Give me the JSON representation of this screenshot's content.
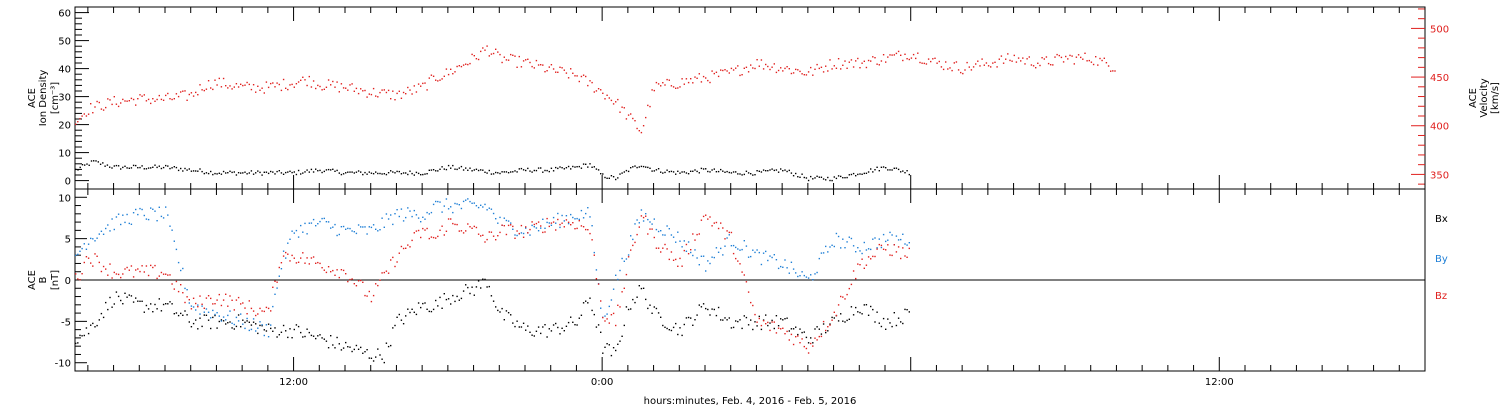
{
  "colors": {
    "black": "#000000",
    "red": "#e0201e",
    "blue": "#1f7fd6"
  },
  "x_axis": {
    "label": "hours:minutes, Feb.  4, 2016 - Feb.  5, 2016",
    "range_hours": [
      3.5,
      56
    ],
    "major_ticks": [
      {
        "hours": 12,
        "label": "12:00"
      },
      {
        "hours": 24,
        "label": "0:00"
      },
      {
        "hours": 36,
        "label": ""
      },
      {
        "hours": 48,
        "label": "12:00"
      }
    ],
    "minor_tick_step_hours": 1
  },
  "chart_data": [
    {
      "type": "scatter",
      "panel": "top",
      "ylabel_left": [
        "ACE",
        "Ion Density",
        "[cm⁻³]"
      ],
      "ylabel_right": [
        "ACE",
        "Velocity",
        "[km/s]"
      ],
      "ylim_left": [
        -3,
        62
      ],
      "yticks_left": [
        0,
        10,
        20,
        30,
        40,
        50,
        60
      ],
      "ylim_right": [
        335,
        522
      ],
      "yticks_right": [
        350,
        400,
        450,
        500
      ],
      "series": [
        {
          "axis": "left",
          "color": "black",
          "points": [
            [
              3.5,
              4
            ],
            [
              4.2,
              7
            ],
            [
              5,
              5
            ],
            [
              6,
              5
            ],
            [
              7,
              5
            ],
            [
              8,
              4
            ],
            [
              9,
              3
            ],
            [
              10,
              3
            ],
            [
              11,
              3
            ],
            [
              12,
              3
            ],
            [
              13,
              4
            ],
            [
              14,
              3
            ],
            [
              15,
              3
            ],
            [
              16,
              3
            ],
            [
              17,
              3
            ],
            [
              17.5,
              4
            ],
            [
              18,
              5
            ],
            [
              19,
              4
            ],
            [
              20,
              3
            ],
            [
              21,
              4
            ],
            [
              22,
              4
            ],
            [
              23,
              5
            ],
            [
              23.5,
              6
            ],
            [
              24,
              2
            ],
            [
              24.5,
              1
            ],
            [
              25,
              4
            ],
            [
              25.5,
              6
            ],
            [
              26,
              4
            ],
            [
              27,
              3
            ],
            [
              28,
              4
            ],
            [
              29,
              3
            ],
            [
              30,
              3
            ],
            [
              31,
              4
            ],
            [
              32,
              1
            ],
            [
              33,
              1
            ],
            [
              34,
              3
            ],
            [
              35,
              5
            ],
            [
              36,
              3
            ]
          ]
        },
        {
          "axis": "right",
          "color": "red",
          "points": [
            [
              3.5,
              405
            ],
            [
              4,
              418
            ],
            [
              5,
              425
            ],
            [
              6,
              428
            ],
            [
              7,
              428
            ],
            [
              8,
              432
            ],
            [
              8.5,
              442
            ],
            [
              9,
              445
            ],
            [
              10,
              440
            ],
            [
              11,
              440
            ],
            [
              12,
              445
            ],
            [
              12.5,
              448
            ],
            [
              13,
              443
            ],
            [
              14,
              440
            ],
            [
              15,
              435
            ],
            [
              16,
              432
            ],
            [
              17,
              440
            ],
            [
              17.5,
              450
            ],
            [
              18,
              455
            ],
            [
              19,
              470
            ],
            [
              19.5,
              480
            ],
            [
              20,
              470
            ],
            [
              21,
              465
            ],
            [
              22,
              458
            ],
            [
              23,
              452
            ],
            [
              24,
              435
            ],
            [
              24.5,
              425
            ],
            [
              25,
              410
            ],
            [
              25.5,
              395
            ],
            [
              26,
              440
            ],
            [
              27,
              445
            ],
            [
              28,
              450
            ],
            [
              29,
              455
            ],
            [
              30,
              465
            ],
            [
              31,
              460
            ],
            [
              32,
              455
            ],
            [
              33,
              465
            ],
            [
              34,
              465
            ],
            [
              35,
              470
            ],
            [
              36,
              475
            ],
            [
              37,
              465
            ],
            [
              38,
              460
            ],
            [
              39,
              465
            ],
            [
              40,
              470
            ],
            [
              41,
              465
            ],
            [
              42,
              470
            ],
            [
              43,
              470
            ],
            [
              44,
              460
            ]
          ]
        }
      ]
    },
    {
      "type": "scatter",
      "panel": "bottom",
      "ylabel_left": [
        "ACE",
        "B",
        "[nT]"
      ],
      "ylim": [
        -11,
        11
      ],
      "yticks": [
        -10,
        -5,
        0,
        5,
        10
      ],
      "legend": [
        "Bx",
        "By",
        "Bz"
      ],
      "series": [
        {
          "name": "Bx",
          "color": "black",
          "points": [
            [
              3.5,
              -7
            ],
            [
              4,
              -6
            ],
            [
              5,
              -2
            ],
            [
              6,
              -3
            ],
            [
              7,
              -3
            ],
            [
              8,
              -5
            ],
            [
              9,
              -5
            ],
            [
              10,
              -5
            ],
            [
              11,
              -6
            ],
            [
              12,
              -6
            ],
            [
              13,
              -7
            ],
            [
              14,
              -8
            ],
            [
              15,
              -9
            ],
            [
              15.5,
              -9
            ],
            [
              16,
              -5
            ],
            [
              17,
              -3
            ],
            [
              17.5,
              -3
            ],
            [
              18,
              -2
            ],
            [
              19,
              -1
            ],
            [
              19.5,
              0
            ],
            [
              20,
              -4
            ],
            [
              21,
              -6
            ],
            [
              22,
              -6
            ],
            [
              23,
              -5
            ],
            [
              23.5,
              -2
            ],
            [
              24,
              -8
            ],
            [
              24.5,
              -9
            ],
            [
              25,
              -3
            ],
            [
              25.5,
              -1
            ],
            [
              26,
              -4
            ],
            [
              27,
              -6
            ],
            [
              28,
              -3
            ],
            [
              29,
              -5
            ],
            [
              30,
              -5
            ],
            [
              31,
              -5
            ],
            [
              32,
              -7
            ],
            [
              33,
              -5
            ],
            [
              34,
              -3
            ],
            [
              35,
              -5
            ],
            [
              36,
              -4
            ]
          ]
        },
        {
          "name": "By",
          "color": "blue",
          "points": [
            [
              3.5,
              3
            ],
            [
              4,
              5
            ],
            [
              5,
              7
            ],
            [
              6,
              8
            ],
            [
              7,
              8
            ],
            [
              8,
              -3
            ],
            [
              9,
              -4
            ],
            [
              10,
              -5
            ],
            [
              11,
              -6
            ],
            [
              11.5,
              2
            ],
            [
              12,
              6
            ],
            [
              13,
              7
            ],
            [
              14,
              6
            ],
            [
              15,
              6
            ],
            [
              16,
              8
            ],
            [
              17,
              8
            ],
            [
              17.5,
              9
            ],
            [
              18,
              9
            ],
            [
              19,
              9
            ],
            [
              19.5,
              9
            ],
            [
              20,
              7
            ],
            [
              21,
              6
            ],
            [
              22,
              7
            ],
            [
              23,
              8
            ],
            [
              23.5,
              8
            ],
            [
              24,
              -5
            ],
            [
              24.5,
              0
            ],
            [
              25,
              4
            ],
            [
              25.5,
              8
            ],
            [
              26,
              7
            ],
            [
              27,
              5
            ],
            [
              28,
              2
            ],
            [
              29,
              5
            ],
            [
              30,
              3
            ],
            [
              31,
              2
            ],
            [
              32,
              0
            ],
            [
              33,
              5
            ],
            [
              34,
              4
            ],
            [
              35,
              5
            ],
            [
              36,
              5
            ]
          ]
        },
        {
          "name": "Bz",
          "color": "red",
          "points": [
            [
              3.5,
              0
            ],
            [
              4,
              3
            ],
            [
              5,
              1
            ],
            [
              6,
              1
            ],
            [
              7,
              1
            ],
            [
              8,
              -3
            ],
            [
              9,
              -2
            ],
            [
              10,
              -3
            ],
            [
              11,
              -4
            ],
            [
              11.5,
              3
            ],
            [
              12,
              3
            ],
            [
              13,
              2
            ],
            [
              14,
              1
            ],
            [
              15,
              -2
            ],
            [
              16,
              3
            ],
            [
              17,
              6
            ],
            [
              17.5,
              5
            ],
            [
              18,
              7
            ],
            [
              19,
              6
            ],
            [
              19.5,
              5
            ],
            [
              20,
              6
            ],
            [
              21,
              6
            ],
            [
              22,
              7
            ],
            [
              23,
              7
            ],
            [
              23.5,
              6
            ],
            [
              24,
              -4
            ],
            [
              24.5,
              -5
            ],
            [
              25,
              2
            ],
            [
              25.5,
              8
            ],
            [
              26,
              5
            ],
            [
              27,
              2
            ],
            [
              28,
              8
            ],
            [
              29,
              5
            ],
            [
              30,
              -5
            ],
            [
              31,
              -6
            ],
            [
              32,
              -8
            ],
            [
              33,
              -4
            ],
            [
              34,
              2
            ],
            [
              35,
              4
            ],
            [
              36,
              3
            ]
          ]
        }
      ]
    }
  ]
}
